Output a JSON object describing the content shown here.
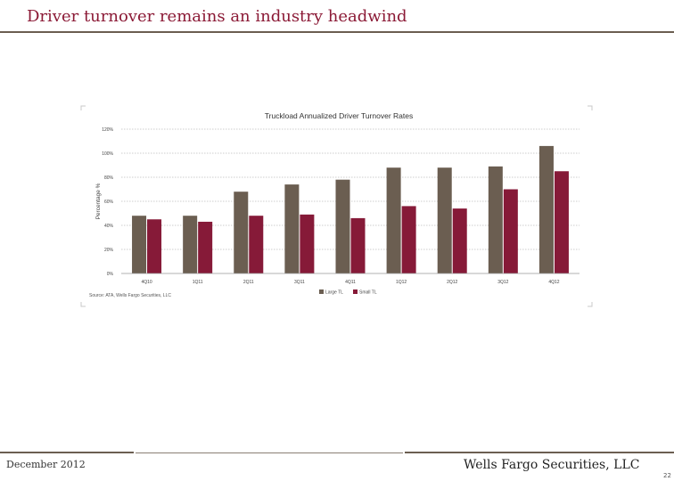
{
  "slide": {
    "title": "Driver turnover remains an industry headwind",
    "footer_date": "December 2012",
    "footer_company": "Wells Fargo Securities, LLC",
    "page_number": "22"
  },
  "colors": {
    "title": "#8b1a36",
    "large_tl": "#6b5e51",
    "small_tl": "#861a38",
    "rule": "#6b5e51"
  },
  "chart_data": {
    "type": "bar",
    "title": "Truckload Annualized Driver Turnover Rates",
    "xlabel": "",
    "ylabel": "Percentage %",
    "ylim": [
      0,
      120
    ],
    "yticks": [
      0,
      20,
      40,
      60,
      80,
      100,
      120
    ],
    "ytick_labels": [
      "0%",
      "20%",
      "40%",
      "60%",
      "80%",
      "100%",
      "120%"
    ],
    "grid": true,
    "categories": [
      "4Q10",
      "1Q11",
      "2Q11",
      "3Q11",
      "4Q11",
      "1Q12",
      "2Q12",
      "3Q12",
      "4Q12"
    ],
    "series": [
      {
        "name": "Large TL",
        "values": [
          48,
          48,
          68,
          74,
          78,
          88,
          88,
          89,
          106
        ]
      },
      {
        "name": "Small TL",
        "values": [
          45,
          43,
          48,
          49,
          46,
          56,
          54,
          70,
          85
        ]
      }
    ],
    "legend_position": "bottom-center",
    "source": "Source: ATA, Wells Fargo Securities, LLC"
  }
}
